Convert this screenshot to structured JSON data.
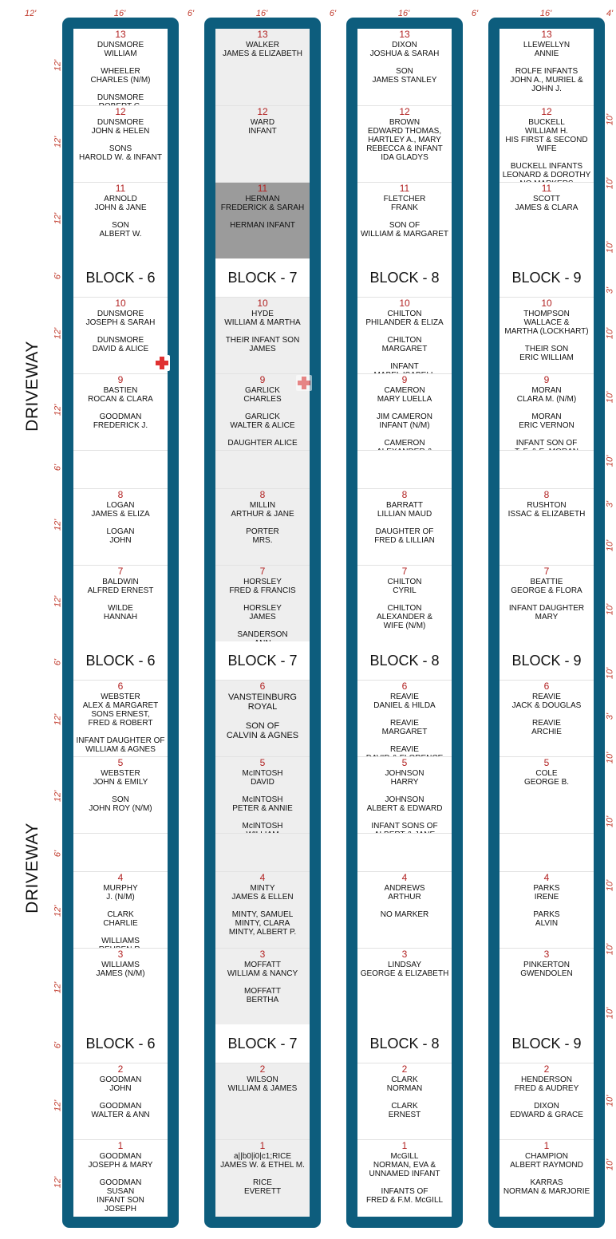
{
  "dimensions": {
    "top": [
      "12'",
      "16'",
      "6'",
      "16'",
      "6'",
      "16'",
      "6'",
      "16'",
      "4'"
    ],
    "left_rows": [
      "12'",
      "12'",
      "12'",
      "6'",
      "12'",
      "12'",
      "6'",
      "12'",
      "12'",
      "6'",
      "12'",
      "12'",
      "6'",
      "12'",
      "12'",
      "6'",
      "12'",
      "12'"
    ],
    "right_rows": [
      "10'",
      "10'",
      "10'",
      "3'",
      "10'",
      "10'",
      "10'",
      "3'",
      "10'",
      "10'",
      "10'",
      "3'",
      "10'",
      "10'",
      "10'",
      "10'",
      "10'",
      "10'",
      "10'"
    ]
  },
  "driveway_label": "DRIVEWAY",
  "colors": {
    "frame": "#0d5d7d",
    "plot_number": "#b22222",
    "highlight": "#9b9b9b",
    "marker": "#e03131"
  },
  "columns": [
    {
      "top": [
        {
          "num": "13",
          "text": "DUNSMORE\nWILLIAM\n\nWHEELER\nCHARLES (N/M)\n\nDUNSMORE\nROBERT G."
        },
        {
          "num": "12",
          "text": "DUNSMORE\nJOHN & HELEN\n\nSONS\nHAROLD W. & INFANT"
        },
        {
          "num": "11",
          "text": "ARNOLD\nJOHN & JANE\n\nSON\nALBERT W."
        }
      ],
      "block1": "BLOCK - 6",
      "mid1": [
        {
          "num": "10",
          "text": "DUNSMORE\nJOSEPH & SARAH\n\nDUNSMORE\nDAVID & ALICE"
        },
        {
          "num": "9",
          "text": "BASTIEN\nROCAN & CLARA\n\nGOODMAN\nFREDERICK J."
        }
      ],
      "mid2": [
        {
          "num": "8",
          "text": "LOGAN\nJAMES & ELIZA\n\nLOGAN\nJOHN"
        },
        {
          "num": "7",
          "text": "BALDWIN\nALFRED ERNEST\n\nWILDE\nHANNAH"
        }
      ],
      "block2": "BLOCK - 6",
      "mid3": [
        {
          "num": "6",
          "text": "WEBSTER\nALEX & MARGARET\nSONS ERNEST,\nFRED & ROBERT\n\nINFANT DAUGHTER OF\nWILLIAM & AGNES"
        },
        {
          "num": "5",
          "text": "WEBSTER\nJOHN & EMILY\n\nSON\nJOHN ROY (N/M)"
        }
      ],
      "mid4": [
        {
          "num": "4",
          "text": "MURPHY\nJ. (N/M)\n\nCLARK\nCHARLIE\n\nWILLIAMS\nREUBEN R."
        },
        {
          "num": "3",
          "text": "WILLIAMS\nJAMES (N/M)"
        }
      ],
      "block3": "BLOCK - 6",
      "bottom": [
        {
          "num": "2",
          "text": "GOODMAN\nJOHN\n\nGOODMAN\nWALTER & ANN"
        },
        {
          "num": "1",
          "text": "GOODMAN\nJOSEPH & MARY\n\nGOODMAN\nSUSAN\nINFANT SON\nJOSEPH"
        }
      ]
    },
    {
      "top": [
        {
          "num": "13",
          "text": "WALKER\nJAMES & ELIZABETH"
        },
        {
          "num": "12",
          "text": "WARD\nINFANT"
        },
        {
          "num": "11",
          "text": "HERMAN\nFREDERICK & SARAH\n\nHERMAN INFANT"
        }
      ],
      "block1": "BLOCK - 7",
      "mid1": [
        {
          "num": "10",
          "text": "HYDE\nWILLIAM & MARTHA\n\nTHEIR INFANT SON\nJAMES"
        },
        {
          "num": "9",
          "text": "GARLICK\nCHARLES\n\nGARLICK\nWALTER & ALICE\n\nDAUGHTER ALICE"
        }
      ],
      "mid2": [
        {
          "num": "8",
          "text": "MILLIN\nARTHUR & JANE\n\nPORTER\nMRS."
        },
        {
          "num": "7",
          "text": "HORSLEY\nFRED & FRANCIS\n\nHORSLEY\nJAMES\n\nSANDERSON\nANN"
        }
      ],
      "block2": "BLOCK - 7",
      "mid3": [
        {
          "num": "6",
          "text": "VANSTEINBURG\nROYAL\n\nSON OF\nCALVIN & AGNES"
        },
        {
          "num": "5",
          "text": "McINTOSH\nDAVID\n\nMcINTOSH\nPETER & ANNIE\n\nMcINTOSH\nWILLIAM"
        }
      ],
      "mid4": [
        {
          "num": "4",
          "text": "MINTY\nJAMES & ELLEN\n\nMINTY, SAMUEL\nMINTY, CLARA\nMINTY, ALBERT P."
        },
        {
          "num": "3",
          "text": "MOFFATT\nWILLIAM & NANCY\n\nMOFFATT\nBERTHA"
        }
      ],
      "block3": "BLOCK - 7",
      "bottom": [
        {
          "num": "2",
          "text": "WILSON\nWILLIAM & JAMES"
        },
        {
          "num": "1",
          "text": "a||b0|i0|c1;RICE\nJAMES W. & ETHEL M.\n\nRICE\nEVERETT"
        }
      ]
    },
    {
      "top": [
        {
          "num": "13",
          "text": "DIXON\nJOSHUA & SARAH\n\nSON\nJAMES STANLEY"
        },
        {
          "num": "12",
          "text": "BROWN\nEDWARD THOMAS,\nHARTLEY A., MARY\nREBECCA & INFANT\nIDA GLADYS"
        },
        {
          "num": "11",
          "text": "FLETCHER\nFRANK\n\nSON OF\nWILLIAM & MARGARET"
        }
      ],
      "block1": "BLOCK - 8",
      "mid1": [
        {
          "num": "10",
          "text": "CHILTON\nPHILANDER & ELIZA\n\nCHILTON\nMARGARET\n\nINFANT\nMABEL ISABELL"
        },
        {
          "num": "9",
          "text": "CAMERON\nMARY LUELLA\n\nJIM CAMERON\nINFANT (N/M)\n\nCAMERON\nALEXANDER & CATHERINE"
        }
      ],
      "mid2": [
        {
          "num": "8",
          "text": "BARRATT\nLILLIAN MAUD\n\nDAUGHTER OF\nFRED & LILLIAN"
        },
        {
          "num": "7",
          "text": "CHILTON\nCYRIL\n\nCHILTON\nALEXANDER &\nWIFE (N/M)"
        }
      ],
      "block2": "BLOCK - 8",
      "mid3": [
        {
          "num": "6",
          "text": "REAVIE\nDANIEL & HILDA\n\nREAVIE\nMARGARET\n\nREAVIE\nDAVID & FLORENCE"
        },
        {
          "num": "5",
          "text": "JOHNSON\nHARRY\n\nJOHNSON\nALBERT & EDWARD\n\nINFANT SONS OF\nALBERT & JANE"
        }
      ],
      "mid4": [
        {
          "num": "4",
          "text": "ANDREWS\nARTHUR\n\nNO MARKER"
        },
        {
          "num": "3",
          "text": "LINDSAY\nGEORGE & ELIZABETH"
        }
      ],
      "block3": "BLOCK - 8",
      "bottom": [
        {
          "num": "2",
          "text": "CLARK\nNORMAN\n\nCLARK\nERNEST"
        },
        {
          "num": "1",
          "text": "McGILL\nNORMAN, EVA &\nUNNAMED INFANT\n\nINFANTS OF\nFRED & F.M. McGILL"
        }
      ]
    },
    {
      "top": [
        {
          "num": "13",
          "text": "LLEWELLYN\nANNIE\n\nROLFE INFANTS\nJOHN A., MURIEL &\nJOHN J."
        },
        {
          "num": "12",
          "text": "BUCKELL\nWILLIAM H.\nHIS FIRST & SECOND WIFE\n\nBUCKELL INFANTS\nLEONARD & DOROTHY\nNO MARKERS"
        },
        {
          "num": "11",
          "text": "SCOTT\nJAMES & CLARA"
        }
      ],
      "block1": "BLOCK - 9",
      "mid1": [
        {
          "num": "10",
          "text": "THOMPSON\nWALLACE &\nMARTHA (LOCKHART)\n\nTHEIR SON\nERIC WILLIAM"
        },
        {
          "num": "9",
          "text": "MORAN\nCLARA M. (N/M)\n\nMORAN\nERIC VERNON\n\nINFANT SON OF\nT. F. & E. MORAN"
        }
      ],
      "mid2": [
        {
          "num": "8",
          "text": "RUSHTON\nISSAC & ELIZABETH"
        },
        {
          "num": "7",
          "text": "BEATTIE\nGEORGE & FLORA\n\nINFANT DAUGHTER\nMARY"
        }
      ],
      "block2": "BLOCK - 9",
      "mid3": [
        {
          "num": "6",
          "text": "REAVIE\nJACK & DOUGLAS\n\nREAVIE\nARCHIE"
        },
        {
          "num": "5",
          "text": "COLE\nGEORGE B."
        }
      ],
      "mid4": [
        {
          "num": "4",
          "text": "PARKS\nIRENE\n\nPARKS\nALVIN"
        },
        {
          "num": "3",
          "text": "PINKERTON\nGWENDOLEN"
        }
      ],
      "block3": "BLOCK - 9",
      "bottom": [
        {
          "num": "2",
          "text": "HENDERSON\nFRED & AUDREY\n\nDIXON\nEDWARD & GRACE"
        },
        {
          "num": "1",
          "text": "CHAMPION\nALBERT RAYMOND\n\nKARRAS\nNORMAN & MARJORIE"
        }
      ]
    }
  ]
}
